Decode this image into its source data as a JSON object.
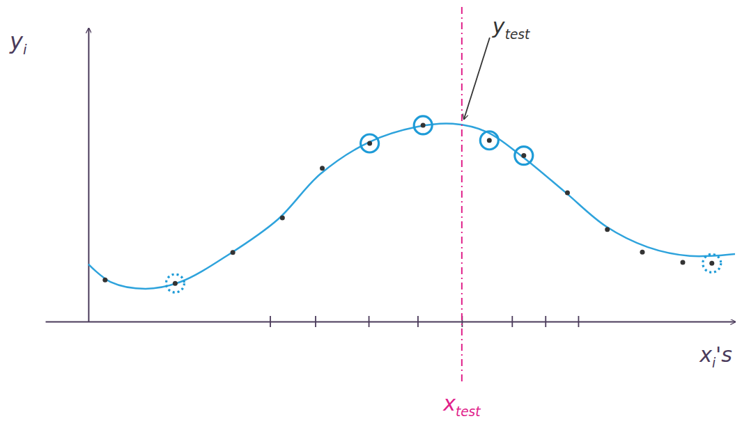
{
  "chart_data": {
    "type": "scatter",
    "x_label": {
      "text": "x",
      "sub": "i",
      "suffix": "'s"
    },
    "y_label": {
      "text": "y",
      "sub": "i"
    },
    "xlim": [
      -0.8,
      12
    ],
    "ylim": [
      0,
      6
    ],
    "xticks": [
      3.37,
      4.21,
      5.2,
      6.11,
      6.93,
      7.86,
      8.48,
      9.09
    ],
    "tick_labels": false,
    "grid": false,
    "series": [
      {
        "type": "line",
        "color": "#2ea3dc",
        "line_style": "solid",
        "x": [
          0,
          0.41,
          1.06,
          1.71,
          2.62,
          3.52,
          4.3,
          5.2,
          6.11,
          6.76,
          7.4,
          8.05,
          8.83,
          9.61,
          10.38,
          11.16,
          12
        ],
        "values": [
          1.17,
          0.81,
          0.67,
          0.81,
          1.38,
          2.09,
          3.01,
          3.66,
          3.98,
          4.04,
          3.87,
          3.37,
          2.66,
          1.94,
          1.52,
          1.34,
          1.38
        ]
      },
      {
        "type": "scatter",
        "color": "#333333",
        "marker": "dot",
        "x": [
          0.31,
          1.61,
          2.68,
          3.6,
          4.34,
          5.22,
          6.21,
          7.44,
          8.08,
          8.89,
          9.63,
          10.28,
          11.03,
          11.57
        ],
        "values": [
          0.85,
          0.78,
          1.41,
          2.12,
          3.13,
          3.64,
          4.01,
          3.7,
          3.39,
          2.63,
          1.88,
          1.42,
          1.21,
          1.19
        ]
      },
      {
        "type": "scatter",
        "color": "#1e9bd7",
        "marker": "ring",
        "line_style": "solid",
        "x": [
          5.22,
          6.21,
          7.44,
          8.08
        ],
        "values": [
          3.64,
          4.01,
          3.7,
          3.39
        ]
      },
      {
        "type": "scatter",
        "color": "#1e9bd7",
        "marker": "ring",
        "line_style": "dashed",
        "x": [
          1.61,
          11.57
        ],
        "values": [
          0.78,
          1.19
        ]
      }
    ],
    "annotations": [
      {
        "text": "y",
        "sub": "test",
        "x": 6.93,
        "y": 4.02,
        "color": "#333333"
      },
      {
        "text": "x",
        "sub": "test",
        "x": 6.93,
        "color": "#e0218a",
        "line_style": "dashdot"
      }
    ]
  }
}
